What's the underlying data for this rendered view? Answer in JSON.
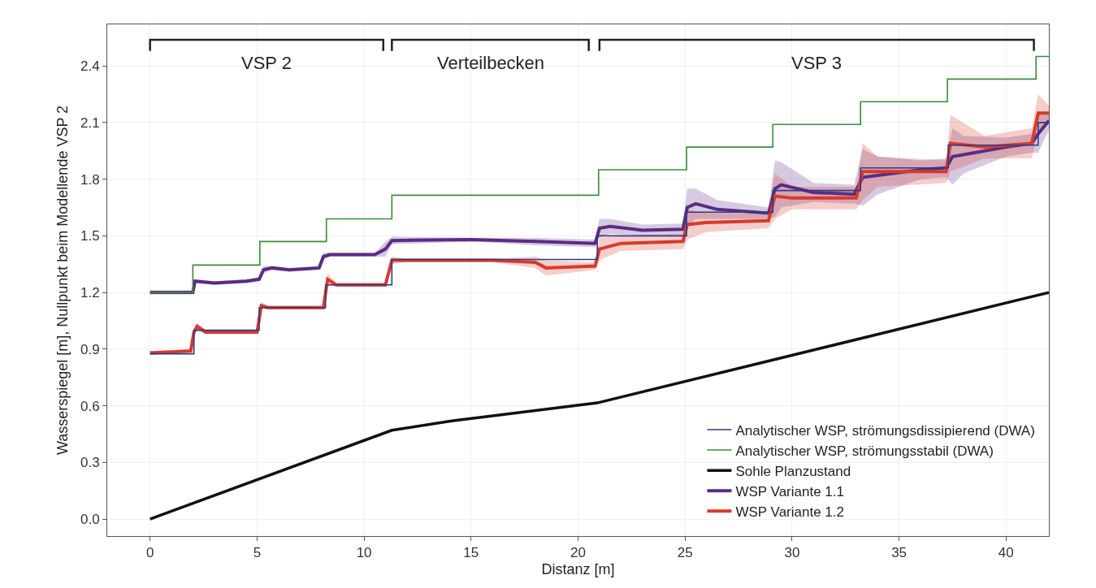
{
  "chart_data": {
    "type": "line",
    "xlabel": "Distanz [m]",
    "ylabel": "Wasserspiegel [m], Nullpunkt beim Modellende VSP 2",
    "xlim": [
      -2,
      42
    ],
    "ylim": [
      -0.09,
      2.62
    ],
    "xticks": [
      0,
      5,
      10,
      15,
      20,
      25,
      30,
      35,
      40
    ],
    "yticks": [
      {
        "value": 0,
        "label": "0.0"
      },
      0.3,
      0.6,
      0.9,
      1.2,
      1.5,
      1.8,
      2.1,
      2.4
    ],
    "grid": true,
    "legend": "bottom right",
    "marker": "none",
    "annotations": [
      "VSP 2",
      "Verteilbecken",
      "VSP 3"
    ],
    "series": [
      {
        "name": "Analytischer WSP, strömungsdissipierend (DWA)",
        "type": "step",
        "color": "#2e3a87",
        "x": [
          0,
          2.05,
          5.1,
          8.2,
          11.3,
          20.9,
          25.07,
          29.1,
          33.2,
          37.3,
          41.5,
          42
        ],
        "values": [
          0.875,
          1.0,
          1.12,
          1.24,
          1.375,
          1.5,
          1.625,
          1.74,
          1.86,
          1.98,
          2.1,
          2.1
        ]
      },
      {
        "name": "Analytischer WSP, strömungsstabil (DWA)",
        "type": "step",
        "color": "#3d8a3d",
        "x": [
          0,
          2.0,
          5.13,
          8.24,
          11.3,
          20.96,
          25.07,
          29.1,
          33.2,
          37.26,
          41.4,
          42
        ],
        "values": [
          1.2,
          1.345,
          1.47,
          1.59,
          1.715,
          1.85,
          1.97,
          2.09,
          2.21,
          2.33,
          2.45,
          2.45
        ]
      },
      {
        "name": "Sohle Planzustand",
        "color": "#111111",
        "x": [
          0,
          11.3,
          14.1,
          20.9,
          42
        ],
        "values": [
          0,
          0.47,
          0.52,
          0.615,
          1.2
        ]
      },
      {
        "name": "WSP Variante 1.1",
        "color": "#5b2c83",
        "x": [
          0,
          2.0,
          2.1,
          3,
          4.5,
          5.1,
          5.3,
          5.7,
          6.5,
          7.9,
          8.1,
          8.4,
          10.5,
          11.0,
          11.3,
          15,
          18,
          20.8,
          21.0,
          21.5,
          23,
          24.9,
          25.1,
          25.5,
          26.5,
          28.9,
          29.2,
          29.5,
          31,
          32.9,
          33.3,
          34,
          36,
          37.2,
          37.5,
          38,
          40,
          41.2,
          41.5,
          42
        ],
        "values": [
          1.2,
          1.2,
          1.26,
          1.25,
          1.26,
          1.27,
          1.32,
          1.33,
          1.32,
          1.33,
          1.39,
          1.4,
          1.4,
          1.43,
          1.475,
          1.48,
          1.47,
          1.46,
          1.54,
          1.55,
          1.53,
          1.535,
          1.65,
          1.67,
          1.64,
          1.62,
          1.75,
          1.77,
          1.73,
          1.72,
          1.81,
          1.82,
          1.85,
          1.86,
          1.92,
          1.93,
          1.97,
          1.99,
          2.04,
          2.11
        ],
        "lower": [
          1.19,
          1.19,
          1.25,
          1.24,
          1.25,
          1.26,
          1.3,
          1.32,
          1.31,
          1.32,
          1.37,
          1.39,
          1.39,
          1.39,
          1.455,
          1.47,
          1.45,
          1.44,
          1.49,
          1.51,
          1.5,
          1.505,
          1.55,
          1.59,
          1.59,
          1.59,
          1.6,
          1.65,
          1.68,
          1.67,
          1.66,
          1.72,
          1.8,
          1.81,
          1.77,
          1.83,
          1.92,
          1.94,
          1.94,
          2.06
        ],
        "upper": [
          1.21,
          1.21,
          1.27,
          1.26,
          1.27,
          1.28,
          1.34,
          1.34,
          1.33,
          1.34,
          1.41,
          1.41,
          1.41,
          1.47,
          1.495,
          1.49,
          1.49,
          1.48,
          1.59,
          1.59,
          1.56,
          1.565,
          1.75,
          1.75,
          1.69,
          1.65,
          1.9,
          1.89,
          1.78,
          1.77,
          1.96,
          1.92,
          1.9,
          1.91,
          2.07,
          2.03,
          2.02,
          2.04,
          2.14,
          2.16
        ]
      },
      {
        "name": "WSP Variante 1.2",
        "color": "#d83a2a",
        "x": [
          0,
          1.9,
          2.05,
          2.2,
          2.6,
          5.0,
          5.2,
          5.5,
          8.1,
          8.3,
          8.7,
          11.0,
          11.3,
          12,
          16,
          18,
          18.5,
          20.8,
          21.0,
          22,
          24.9,
          25.1,
          26,
          28.9,
          29.2,
          30,
          33,
          33.3,
          34,
          37.2,
          37.4,
          39,
          41.2,
          41.5,
          42
        ],
        "values": [
          0.88,
          0.89,
          0.99,
          1.02,
          0.99,
          0.99,
          1.13,
          1.12,
          1.12,
          1.27,
          1.24,
          1.24,
          1.37,
          1.37,
          1.37,
          1.36,
          1.33,
          1.34,
          1.43,
          1.46,
          1.47,
          1.56,
          1.57,
          1.58,
          1.71,
          1.7,
          1.7,
          1.84,
          1.84,
          1.84,
          1.99,
          1.97,
          1.99,
          2.15,
          2.15
        ],
        "lower": [
          0.87,
          0.88,
          0.97,
          1.0,
          0.98,
          0.98,
          1.11,
          1.11,
          1.11,
          1.24,
          1.23,
          1.23,
          1.35,
          1.36,
          1.36,
          1.33,
          1.29,
          1.32,
          1.37,
          1.42,
          1.43,
          1.48,
          1.52,
          1.54,
          1.59,
          1.64,
          1.64,
          1.69,
          1.76,
          1.78,
          1.84,
          1.91,
          1.91,
          2.05,
          2.11
        ],
        "upper": [
          0.89,
          0.9,
          1.01,
          1.04,
          1.0,
          1.0,
          1.15,
          1.13,
          1.13,
          1.3,
          1.25,
          1.25,
          1.39,
          1.38,
          1.38,
          1.39,
          1.37,
          1.36,
          1.49,
          1.5,
          1.51,
          1.64,
          1.62,
          1.62,
          1.83,
          1.76,
          1.76,
          1.99,
          1.92,
          1.9,
          2.14,
          2.03,
          2.07,
          2.25,
          2.19
        ]
      }
    ]
  }
}
